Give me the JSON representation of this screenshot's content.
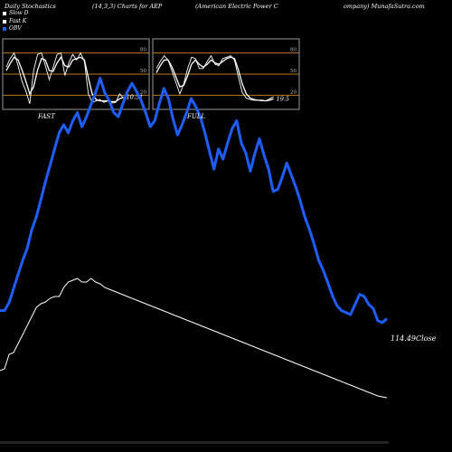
{
  "header": {
    "left": "Daily Stochastics",
    "params": "(14,3,3) Charts for AEP",
    "company": "(American Electric Power C",
    "site": "ompany) MunafaSutra.com"
  },
  "legend": [
    {
      "label": "Slow D",
      "color": "#ffffff"
    },
    {
      "label": "Fast K",
      "color": "#ffffff"
    },
    {
      "label": "OBV",
      "color": "#1e5eff"
    }
  ],
  "colors": {
    "obv": "#1e5eff",
    "close": "#ffffff",
    "grid": "#c07a1e",
    "panel_bg": "#000000",
    "border": "#999999"
  },
  "chart_data": [
    {
      "type": "line",
      "title": "FAST",
      "ylim": [
        0,
        100
      ],
      "grid_levels": [
        20,
        50,
        80
      ],
      "tick_labels": [
        "80",
        "50",
        "20"
      ],
      "last_value_label": "10.51",
      "series": [
        {
          "name": "Fast K",
          "values": [
            60,
            72,
            80,
            62,
            40,
            26,
            8,
            55,
            78,
            80,
            62,
            42,
            60,
            78,
            80,
            48,
            66,
            78,
            70,
            80,
            68,
            22,
            10,
            12,
            14,
            10,
            12,
            9,
            10,
            22,
            16
          ]
        },
        {
          "name": "Slow D",
          "values": [
            55,
            65,
            74,
            70,
            56,
            40,
            22,
            32,
            56,
            72,
            70,
            55,
            54,
            66,
            74,
            62,
            60,
            70,
            72,
            74,
            70,
            45,
            22,
            14,
            12,
            12,
            12,
            11,
            11,
            15,
            17
          ]
        }
      ]
    },
    {
      "type": "line",
      "title": "FULL",
      "ylim": [
        0,
        100
      ],
      "grid_levels": [
        20,
        50,
        80
      ],
      "tick_labels": [
        "80",
        "50",
        "20"
      ],
      "last_value_label": "19.5",
      "series": [
        {
          "name": "Fast K",
          "values": [
            58,
            68,
            76,
            70,
            54,
            38,
            22,
            36,
            58,
            74,
            72,
            58,
            58,
            68,
            76,
            64,
            62,
            72,
            74,
            76,
            70,
            46,
            24,
            16,
            14,
            13,
            13,
            12,
            12,
            15,
            18
          ]
        },
        {
          "name": "Slow D",
          "values": [
            52,
            62,
            70,
            70,
            60,
            46,
            32,
            34,
            48,
            64,
            70,
            64,
            60,
            64,
            70,
            66,
            64,
            68,
            72,
            74,
            72,
            56,
            36,
            22,
            16,
            14,
            13,
            13,
            12,
            13,
            15
          ]
        }
      ]
    },
    {
      "type": "line",
      "title": "",
      "last_value_label": "114.49",
      "close_text": "Close",
      "series": [
        {
          "name": "OBV",
          "values": [
            30,
            30,
            38,
            52,
            66,
            80,
            92,
            110,
            123,
            140,
            158,
            174,
            190,
            206,
            214,
            206,
            218,
            226,
            212,
            222,
            234,
            246,
            260,
            246,
            238,
            226,
            222,
            235,
            247,
            255,
            247,
            238,
            226,
            212,
            218,
            235,
            250,
            240,
            220,
            204,
            214,
            226,
            240,
            232,
            222,
            206,
            188,
            170,
            190,
            180,
            196,
            210,
            218,
            196,
            186,
            168,
            186,
            200,
            184,
            170,
            148,
            150,
            162,
            176,
            164,
            152,
            138,
            122,
            110,
            96,
            80,
            70,
            58,
            45,
            35,
            30,
            28,
            26,
            36,
            46,
            44,
            36,
            32,
            20,
            18,
            22
          ]
        },
        {
          "name": "Close",
          "values": [
            20,
            22,
            38,
            40,
            50,
            60,
            70,
            80,
            90,
            94,
            96,
            100,
            102,
            102,
            112,
            118,
            120,
            122,
            118,
            118,
            122,
            118,
            116,
            112,
            110,
            108,
            106,
            104,
            102,
            100,
            98,
            96,
            94,
            92,
            90,
            88,
            86,
            84,
            82,
            80,
            78,
            76,
            74,
            72,
            70,
            68,
            66,
            64,
            62,
            60,
            58,
            56,
            54,
            52,
            50,
            48,
            46,
            44,
            42,
            40,
            38,
            36,
            34,
            32,
            30,
            28,
            26,
            24,
            22,
            20,
            18,
            16,
            14,
            12,
            10,
            8,
            6,
            4,
            2,
            0,
            -2,
            -4,
            -6,
            -8,
            -9,
            -10
          ]
        }
      ]
    }
  ]
}
